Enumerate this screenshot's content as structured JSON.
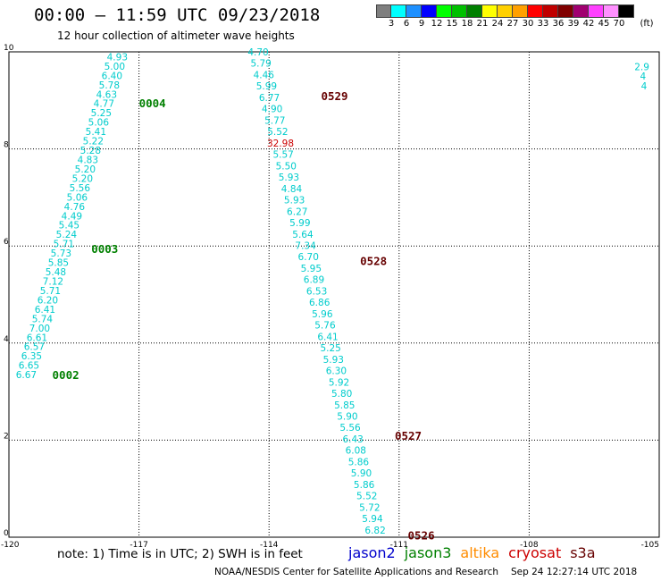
{
  "header": {
    "title": "00:00 – 11:59 UTC 09/23/2018",
    "subtitle": "12 hour collection of altimeter wave heights"
  },
  "legend": {
    "unit": "(ft)",
    "labels": [
      "3",
      "6",
      "9",
      "12",
      "15",
      "18",
      "21",
      "24",
      "27",
      "30",
      "33",
      "36",
      "39",
      "42",
      "45",
      "70"
    ],
    "colors": [
      "#7f7f7f",
      "#00ffff",
      "#1e90ff",
      "#0000ff",
      "#00ff00",
      "#00c000",
      "#008000",
      "#ffff00",
      "#ffd000",
      "#ffa000",
      "#ff0000",
      "#c00000",
      "#800000",
      "#a00070",
      "#ff40ff",
      "#ff90ff",
      "#000000"
    ]
  },
  "footer": {
    "note": "note: 1) Time is in UTC; 2) SWH is in feet",
    "satellites": [
      {
        "name": "jason2",
        "color": "#0000cc"
      },
      {
        "name": "jason3",
        "color": "#008000"
      },
      {
        "name": "altika",
        "color": "#ff8c00"
      },
      {
        "name": "cryosat",
        "color": "#cc0000"
      },
      {
        "name": "s3a",
        "color": "#660000"
      }
    ],
    "credit": "NOAA/NESDIS Center for Satellite Applications and Research",
    "timestamp": "Sep 24 12:27:14 UTC 2018"
  },
  "chart_data": {
    "type": "scatter",
    "xlim": [
      -120,
      -105
    ],
    "ylim": [
      0,
      10
    ],
    "x_ticks": [
      "-120",
      "-117",
      "-114",
      "-111",
      "-108",
      "-105"
    ],
    "y_ticks": [
      "0",
      "2",
      "4",
      "6",
      "8",
      "10"
    ],
    "grid": true,
    "tracks": [
      {
        "name": "jason3",
        "label_color": "#008000",
        "values_color": "#00cccc",
        "start": [
          -119.6,
          3.35
        ],
        "end": [
          -117.5,
          9.9
        ],
        "values": [
          "6.67",
          "6.65",
          "6.35",
          "6.57",
          "6.61",
          "7.00",
          "5.74",
          "6.41",
          "6.20",
          "5.71",
          "7.12",
          "5.48",
          "5.85",
          "5.73",
          "5.71",
          "5.24",
          "5.45",
          "4.49",
          "4.76",
          "5.06",
          "5.56",
          "5.20",
          "5.20",
          "4.83",
          "5.28",
          "5.22",
          "5.41",
          "5.06",
          "5.25",
          "4.77",
          "4.63",
          "5.78",
          "6.40",
          "5.00",
          "4.93"
        ],
        "times": [
          {
            "label": "0002",
            "lon": -119.0,
            "lat": 3.35
          },
          {
            "label": "0003",
            "lon": -118.1,
            "lat": 5.95
          },
          {
            "label": "0004",
            "lon": -117.0,
            "lat": 8.95
          }
        ]
      },
      {
        "name": "s3a",
        "label_color": "#660000",
        "values_color": "#00cccc",
        "start": [
          -114.25,
          10.0
        ],
        "end": [
          -111.55,
          0.15
        ],
        "values": [
          "4.70",
          "5.79",
          "4.46",
          "5.99",
          "6.77",
          "4.90",
          "5.77",
          "5.52",
          "32.98",
          "5.57",
          "5.50",
          "5.93",
          "4.84",
          "5.93",
          "6.27",
          "5.99",
          "5.64",
          "7.34",
          "6.70",
          "5.95",
          "6.89",
          "6.53",
          "6.86",
          "5.96",
          "5.76",
          "6.41",
          "5.25",
          "5.93",
          "6.30",
          "5.92",
          "5.80",
          "5.85",
          "5.90",
          "5.56",
          "6.43",
          "6.08",
          "5.86",
          "5.90",
          "5.86",
          "5.52",
          "5.72",
          "5.94",
          "6.82"
        ],
        "highlight": {
          "index": 8,
          "color": "#cc0000"
        },
        "times": [
          {
            "label": "0529",
            "lon": -112.8,
            "lat": 9.1
          },
          {
            "label": "0528",
            "lon": -111.9,
            "lat": 5.7
          },
          {
            "label": "0527",
            "lon": -111.1,
            "lat": 2.1
          },
          {
            "label": "0526",
            "lon": -110.8,
            "lat": 0.05
          }
        ]
      },
      {
        "name": "partial",
        "label_color": "#008000",
        "values_color": "#00cccc",
        "start": [
          -105.4,
          9.7
        ],
        "end": [
          -105.35,
          9.3
        ],
        "values": [
          "2.9",
          "4",
          "4"
        ],
        "times": []
      }
    ]
  }
}
